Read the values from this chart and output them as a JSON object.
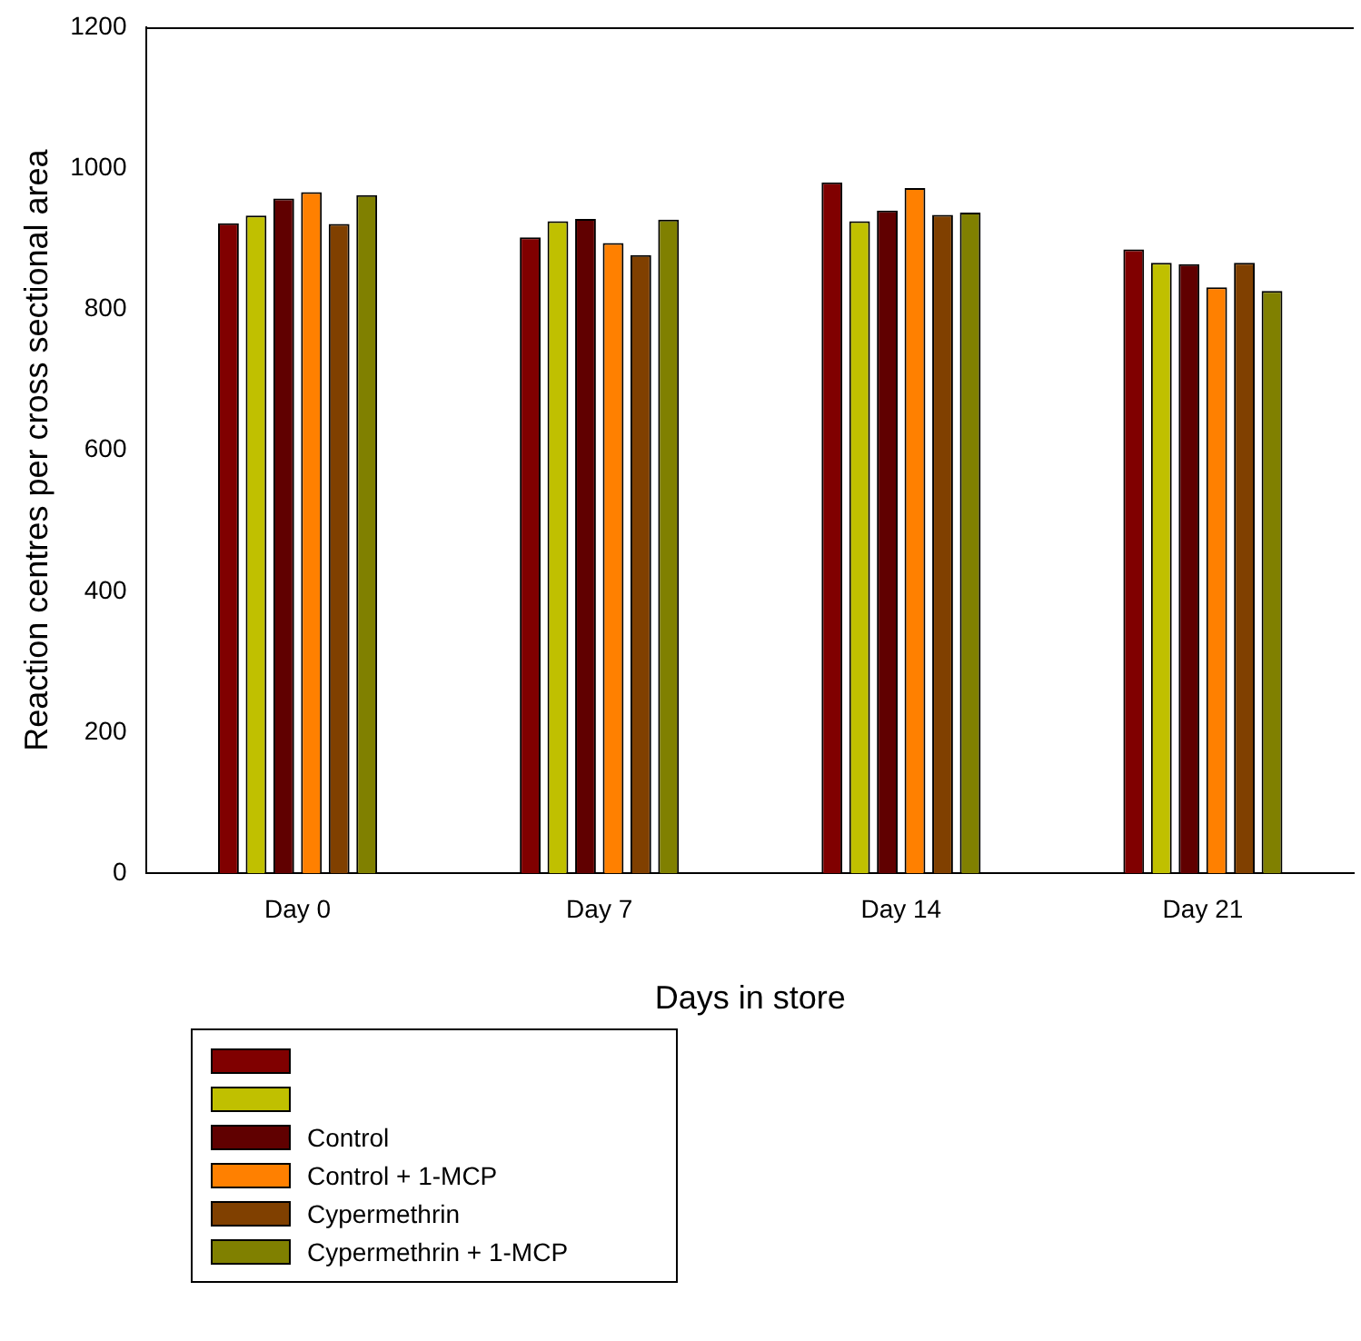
{
  "chart_data": {
    "type": "bar",
    "xlabel": "Days in store",
    "ylabel": "Reaction centres per cross sectional area",
    "categories": [
      "Day 0",
      "Day 7",
      "Day 14",
      "Day 21"
    ],
    "series": [
      {
        "color": "#800000",
        "values": [
          922,
          902,
          980,
          885
        ]
      },
      {
        "color": "#c0c000",
        "values": [
          933,
          925,
          925,
          866
        ]
      },
      {
        "name": "Control",
        "color": "#600000",
        "values": [
          957,
          928,
          940,
          864
        ]
      },
      {
        "name": "Control + 1-MCP",
        "color": "#ff8000",
        "values": [
          966,
          894,
          972,
          831
        ]
      },
      {
        "name": "Cypermethrin",
        "color": "#804000",
        "values": [
          921,
          877,
          934,
          866
        ]
      },
      {
        "name": "Cypermethrin + 1-MCP",
        "color": "#808000",
        "values": [
          962,
          927,
          937,
          826
        ]
      }
    ],
    "ylim": [
      0,
      1200
    ],
    "yticks": [
      0,
      200,
      400,
      600,
      800,
      1000,
      1200
    ],
    "grid": false,
    "legend": "bottom left"
  }
}
